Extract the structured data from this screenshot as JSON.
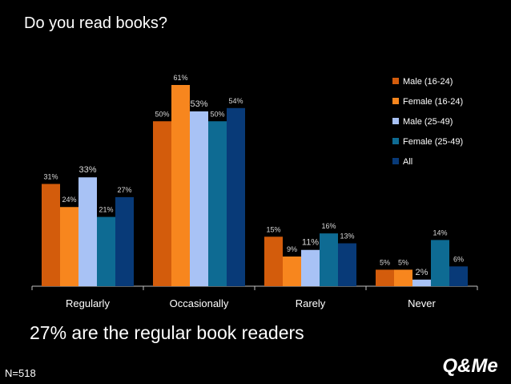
{
  "slide": {
    "title": "Do you read books?",
    "headline": "27% are the regular book readers",
    "sample_size": "N=518",
    "logo_text": "Q&Me"
  },
  "colors": {
    "background": "#000000",
    "text": "#ffffff",
    "axis": "#bfbfbf",
    "label": "#d9d9d9"
  },
  "chart_data": {
    "type": "bar",
    "categories": [
      "Regularly",
      "Occasionally",
      "Rarely",
      "Never"
    ],
    "series": [
      {
        "name": "Male (16-24)",
        "color": "#d35c0c",
        "values": [
          31,
          50,
          15,
          5
        ]
      },
      {
        "name": "Female (16-24)",
        "color": "#f7861e",
        "values": [
          24,
          61,
          9,
          5
        ]
      },
      {
        "name": "Male (25-49)",
        "color": "#a8c2f5",
        "values": [
          33,
          53,
          11,
          2
        ]
      },
      {
        "name": "Female (25-49)",
        "color": "#0e6b93",
        "values": [
          21,
          50,
          16,
          14
        ]
      },
      {
        "name": "All",
        "color": "#083a78",
        "values": [
          27,
          54,
          13,
          6
        ]
      }
    ],
    "value_suffix": "%",
    "emphasized_series": "Male (25-49)",
    "ylim": [
      0,
      70
    ],
    "grid": false,
    "legend_position": "right"
  }
}
